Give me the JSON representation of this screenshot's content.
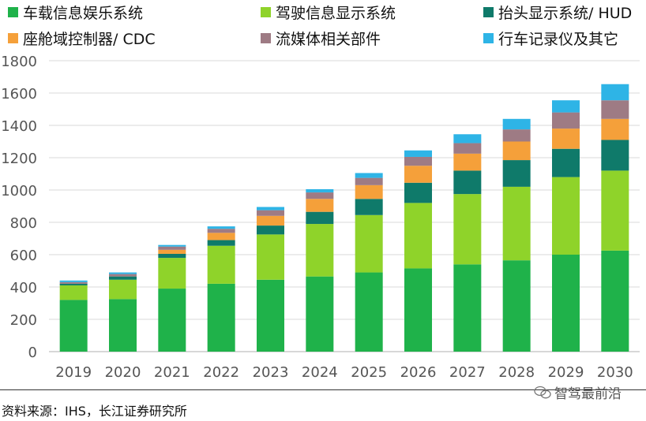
{
  "chart_data": {
    "type": "bar",
    "stacked": true,
    "title": "",
    "xlabel": "",
    "ylabel": "",
    "ylim": [
      0,
      1800
    ],
    "yticks": [
      0,
      200,
      400,
      600,
      800,
      1000,
      1200,
      1400,
      1600,
      1800
    ],
    "grid": true,
    "legend": "top",
    "categories": [
      "2019",
      "2020",
      "2021",
      "2022",
      "2023",
      "2024",
      "2025",
      "2026",
      "2027",
      "2028",
      "2029",
      "2030"
    ],
    "series": [
      {
        "name": "车载信息娱乐系统",
        "color": "#1fb24a",
        "values": [
          320,
          325,
          390,
          420,
          445,
          465,
          490,
          515,
          540,
          565,
          600,
          625
        ]
      },
      {
        "name": "驾驶信息显示系统",
        "color": "#8fd32a",
        "values": [
          90,
          120,
          190,
          235,
          280,
          325,
          355,
          405,
          435,
          455,
          480,
          495
        ]
      },
      {
        "name": "抬头显示系统/ HUD",
        "color": "#0f7a6a",
        "values": [
          10,
          20,
          25,
          35,
          55,
          75,
          100,
          125,
          145,
          165,
          175,
          190
        ]
      },
      {
        "name": "座舱域控制器/ CDC",
        "color": "#f5a03a",
        "values": [
          0,
          0,
          25,
          45,
          60,
          80,
          85,
          105,
          105,
          115,
          125,
          130
        ]
      },
      {
        "name": "流媒体相关部件",
        "color": "#9e7b84",
        "values": [
          10,
          15,
          20,
          25,
          35,
          40,
          45,
          55,
          65,
          75,
          100,
          115
        ]
      },
      {
        "name": "行车记录仪及其它",
        "color": "#2eb4e6",
        "values": [
          10,
          10,
          10,
          15,
          20,
          20,
          30,
          40,
          55,
          65,
          75,
          100
        ]
      }
    ]
  },
  "source_text": "资料来源：IHS，长江证券研究所",
  "watermark_text": "智驾最前沿"
}
